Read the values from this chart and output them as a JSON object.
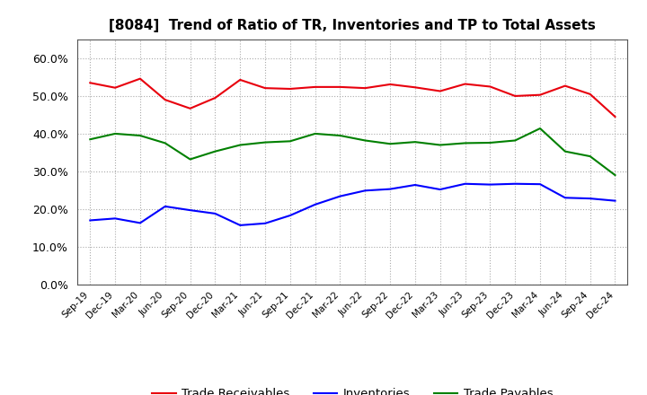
{
  "title": "[8084]  Trend of Ratio of TR, Inventories and TP to Total Assets",
  "x_labels": [
    "Sep-19",
    "Dec-19",
    "Mar-20",
    "Jun-20",
    "Sep-20",
    "Dec-20",
    "Mar-21",
    "Jun-21",
    "Sep-21",
    "Dec-21",
    "Mar-22",
    "Jun-22",
    "Sep-22",
    "Dec-22",
    "Mar-23",
    "Jun-23",
    "Sep-23",
    "Dec-23",
    "Mar-24",
    "Jun-24",
    "Sep-24",
    "Dec-24"
  ],
  "trade_receivables": [
    0.535,
    0.522,
    0.546,
    0.49,
    0.467,
    0.495,
    0.543,
    0.521,
    0.519,
    0.524,
    0.524,
    0.521,
    0.531,
    0.523,
    0.513,
    0.532,
    0.525,
    0.5,
    0.503,
    0.527,
    0.505,
    0.445
  ],
  "inventories": [
    0.17,
    0.175,
    0.163,
    0.207,
    0.197,
    0.188,
    0.157,
    0.162,
    0.183,
    0.212,
    0.234,
    0.249,
    0.253,
    0.264,
    0.252,
    0.267,
    0.265,
    0.267,
    0.266,
    0.23,
    0.228,
    0.222
  ],
  "trade_payables": [
    0.385,
    0.4,
    0.395,
    0.375,
    0.332,
    0.353,
    0.37,
    0.377,
    0.38,
    0.4,
    0.395,
    0.382,
    0.373,
    0.378,
    0.37,
    0.375,
    0.376,
    0.382,
    0.414,
    0.353,
    0.34,
    0.29
  ],
  "tr_color": "#e8000d",
  "inv_color": "#0000ff",
  "tp_color": "#008000",
  "ylim": [
    0.0,
    0.65
  ],
  "yticks": [
    0.0,
    0.1,
    0.2,
    0.3,
    0.4,
    0.5,
    0.6
  ],
  "background_color": "#ffffff",
  "grid_color": "#aaaaaa",
  "legend_labels": [
    "Trade Receivables",
    "Inventories",
    "Trade Payables"
  ]
}
